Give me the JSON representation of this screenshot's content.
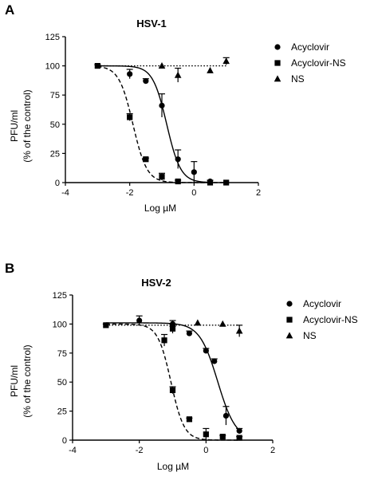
{
  "chart_data": [
    {
      "type": "scatter",
      "panel": "A",
      "title": "HSV-1",
      "xlabel": "Log µM",
      "ylabel_line1": "PFU/ml",
      "ylabel_line2": "(% of the control)",
      "xlim": [
        -4,
        2
      ],
      "ylim": [
        0,
        125
      ],
      "xticks": [
        -4,
        -2,
        0,
        2
      ],
      "yticks": [
        0,
        25,
        50,
        75,
        100,
        125
      ],
      "grid": false,
      "legend_position": "right",
      "series": [
        {
          "name": "Acyclovir",
          "marker": "circle",
          "line": "solid",
          "points": [
            {
              "x": -2.0,
              "y": 93,
              "err": 4
            },
            {
              "x": -1.5,
              "y": 87,
              "err": 2
            },
            {
              "x": -1.0,
              "y": 66,
              "err": 10
            },
            {
              "x": -0.5,
              "y": 20,
              "err": 8
            },
            {
              "x": 0.0,
              "y": 9,
              "err": 9
            },
            {
              "x": 0.5,
              "y": 1,
              "err": 1
            }
          ],
          "fit": {
            "top": 100,
            "bottom": 0,
            "logIC50": -0.85,
            "hill": 2.0
          }
        },
        {
          "name": "Acyclovir-NS",
          "marker": "square",
          "line": "dashed",
          "points": [
            {
              "x": -3.0,
              "y": 100,
              "err": 1
            },
            {
              "x": -2.0,
              "y": 56,
              "err": 3
            },
            {
              "x": -1.5,
              "y": 20,
              "err": 1
            },
            {
              "x": -1.0,
              "y": 5,
              "err": 3
            },
            {
              "x": -0.5,
              "y": 1,
              "err": 1
            },
            {
              "x": 0.5,
              "y": 0,
              "err": 0
            },
            {
              "x": 1.0,
              "y": 0,
              "err": 0
            }
          ],
          "fit": {
            "top": 100,
            "bottom": 0,
            "logIC50": -1.9,
            "hill": 2.0
          }
        },
        {
          "name": "NS",
          "marker": "triangle",
          "line": "dotted",
          "points": [
            {
              "x": -1.0,
              "y": 100,
              "err": 0
            },
            {
              "x": -0.5,
              "y": 92,
              "err": 6
            },
            {
              "x": 0.5,
              "y": 96,
              "err": 0
            },
            {
              "x": 1.0,
              "y": 104,
              "err": 3
            }
          ],
          "fit": {
            "constant": 100
          }
        }
      ]
    },
    {
      "type": "scatter",
      "panel": "B",
      "title": "HSV-2",
      "xlabel": "Log µM",
      "ylabel_line1": "PFU/ml",
      "ylabel_line2": "(% of the control)",
      "xlim": [
        -4,
        2
      ],
      "ylim": [
        0,
        125
      ],
      "xticks": [
        -4,
        -2,
        0,
        2
      ],
      "yticks": [
        0,
        25,
        50,
        75,
        100,
        125
      ],
      "grid": false,
      "legend_position": "right",
      "series": [
        {
          "name": "Acyclovir",
          "marker": "circle",
          "line": "solid",
          "points": [
            {
              "x": -2.0,
              "y": 103,
              "err": 4
            },
            {
              "x": -1.0,
              "y": 100,
              "err": 3
            },
            {
              "x": -0.5,
              "y": 92,
              "err": 2
            },
            {
              "x": 0.0,
              "y": 77,
              "err": 2
            },
            {
              "x": 0.25,
              "y": 68,
              "err": 2
            },
            {
              "x": 0.6,
              "y": 21,
              "err": 8
            },
            {
              "x": 1.0,
              "y": 8,
              "err": 2
            }
          ],
          "fit": {
            "top": 101,
            "bottom": 0,
            "logIC50": 0.35,
            "hill": 1.6
          }
        },
        {
          "name": "Acyclovir-NS",
          "marker": "square",
          "line": "dashed",
          "points": [
            {
              "x": -3.0,
              "y": 99,
              "err": 1
            },
            {
              "x": -1.0,
              "y": 96,
              "err": 4
            },
            {
              "x": -1.25,
              "y": 86,
              "err": 5
            },
            {
              "x": -1.0,
              "y": 43,
              "err": 3
            },
            {
              "x": -0.5,
              "y": 18,
              "err": 1
            },
            {
              "x": 0.0,
              "y": 5,
              "err": 5
            },
            {
              "x": 0.5,
              "y": 3,
              "err": 1
            },
            {
              "x": 1.0,
              "y": 2,
              "err": 1
            }
          ],
          "fit": {
            "top": 100,
            "bottom": 0,
            "logIC50": -1.05,
            "hill": 2.2
          }
        },
        {
          "name": "NS",
          "marker": "triangle",
          "line": "dotted",
          "points": [
            {
              "x": -1.0,
              "y": 100,
              "err": 0
            },
            {
              "x": -0.25,
              "y": 101,
              "err": 0
            },
            {
              "x": 0.5,
              "y": 100,
              "err": 0
            },
            {
              "x": 1.0,
              "y": 94,
              "err": 5
            }
          ],
          "fit": {
            "constant": 99
          }
        }
      ]
    }
  ]
}
